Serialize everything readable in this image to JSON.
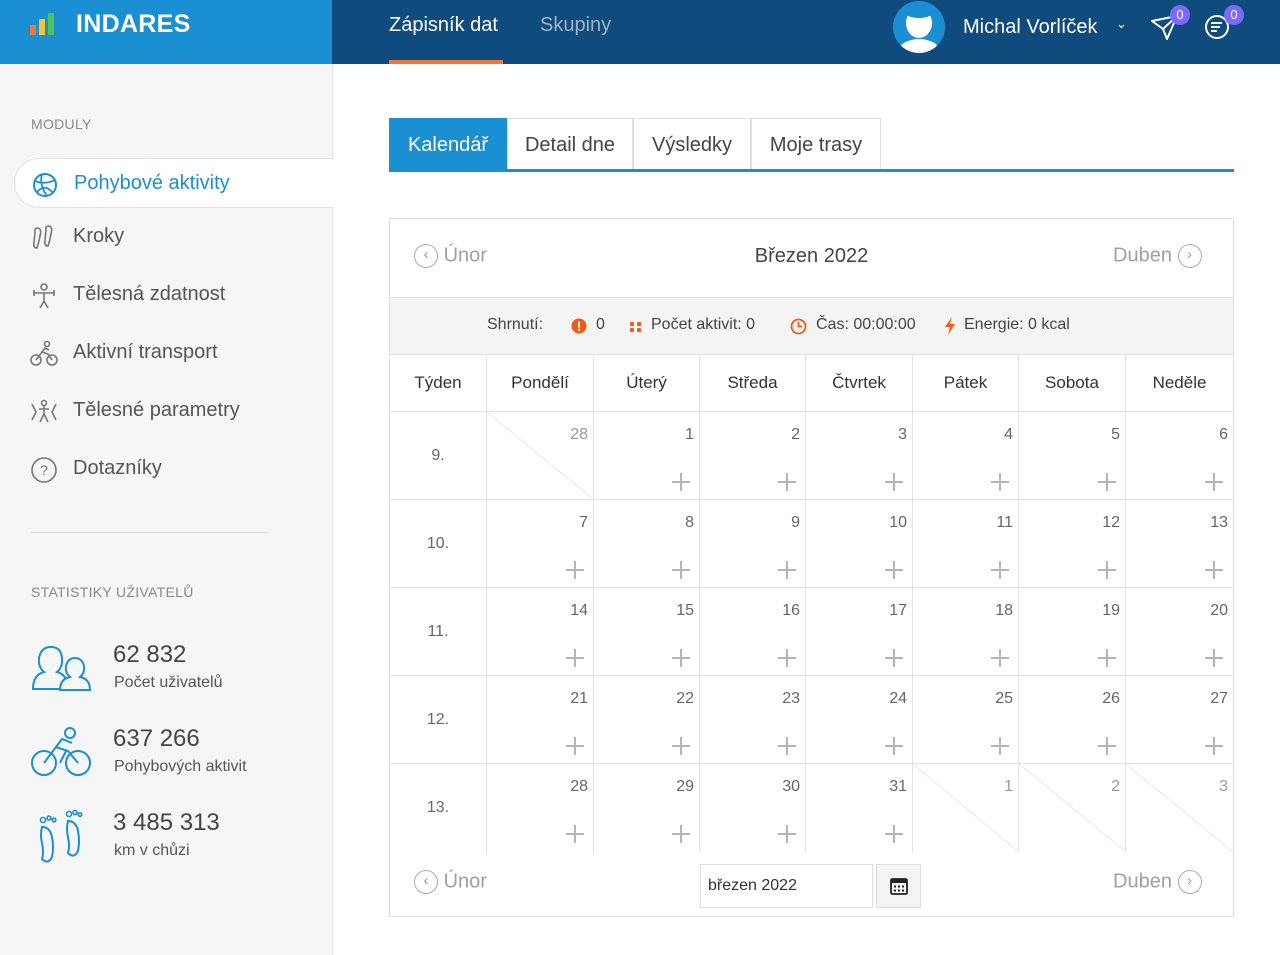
{
  "header": {
    "brand": "INDARES",
    "nav": [
      {
        "label": "Zápisník dat",
        "active": true
      },
      {
        "label": "Skupiny",
        "active": false
      }
    ],
    "user_name": "Michal Vorlíček",
    "user_caret": "⌄",
    "notifications": [
      {
        "icon": "paper-plane-icon",
        "count": "0"
      },
      {
        "icon": "messages-icon",
        "count": "0"
      }
    ],
    "colors": {
      "bar": "#0f4b7d",
      "brand": "#1a8fd1",
      "accent": "#f2763a",
      "badge": "#7c69ff"
    }
  },
  "sidebar": {
    "modules_heading": "MODULY",
    "items": [
      {
        "label": "Pohybové aktivity",
        "icon": "ball-icon",
        "active": true
      },
      {
        "label": "Kroky",
        "icon": "footprints-icon",
        "active": false
      },
      {
        "label": "Tělesná zdatnost",
        "icon": "fitness-icon",
        "active": false
      },
      {
        "label": "Aktivní transport",
        "icon": "bicycle-icon",
        "active": false
      },
      {
        "label": "Tělesné parametry",
        "icon": "body-params-icon",
        "active": false
      },
      {
        "label": "Dotazníky",
        "icon": "question-icon",
        "active": false
      }
    ],
    "stats_heading": "STATISTIKY UŽIVATELŮ",
    "stats": [
      {
        "value": "62 832",
        "caption": "Počet uživatelů",
        "icon": "users-icon"
      },
      {
        "value": "637 266",
        "caption": "Pohybových aktivit",
        "icon": "cyclist-icon"
      },
      {
        "value": "3 485 313",
        "caption": "km v chůzi",
        "icon": "feet-icon"
      }
    ]
  },
  "tabs": [
    {
      "label": "Kalendář",
      "active": true
    },
    {
      "label": "Detail dne",
      "active": false
    },
    {
      "label": "Výsledky",
      "active": false
    },
    {
      "label": "Moje trasy",
      "active": false
    }
  ],
  "calendar": {
    "prev_label": "Únor",
    "next_label": "Duben",
    "month_title": "Březen 2022",
    "summary": {
      "label": "Shrnutí:",
      "alerts": "0",
      "activities": "Počet aktivit: 0",
      "time": "Čas: 00:00:00",
      "energy": "Energie: 0 kcal"
    },
    "headers": [
      "Týden",
      "Pondělí",
      "Úterý",
      "Středa",
      "Čtvrtek",
      "Pátek",
      "Sobota",
      "Neděle"
    ],
    "weeks": [
      {
        "label": "9.",
        "days": [
          "28",
          "1",
          "2",
          "3",
          "4",
          "5",
          "6"
        ]
      },
      {
        "label": "10.",
        "days": [
          "7",
          "8",
          "9",
          "10",
          "11",
          "12",
          "13"
        ]
      },
      {
        "label": "11.",
        "days": [
          "14",
          "15",
          "16",
          "17",
          "18",
          "19",
          "20"
        ]
      },
      {
        "label": "12.",
        "days": [
          "21",
          "22",
          "23",
          "24",
          "25",
          "26",
          "27"
        ]
      },
      {
        "label": "13.",
        "days": [
          "28",
          "29",
          "30",
          "31",
          "1",
          "2",
          "3"
        ]
      }
    ],
    "outside_month": [
      [
        0,
        0
      ],
      [
        4,
        4
      ],
      [
        4,
        5
      ],
      [
        4,
        6
      ]
    ],
    "date_value": "březen 2022"
  }
}
